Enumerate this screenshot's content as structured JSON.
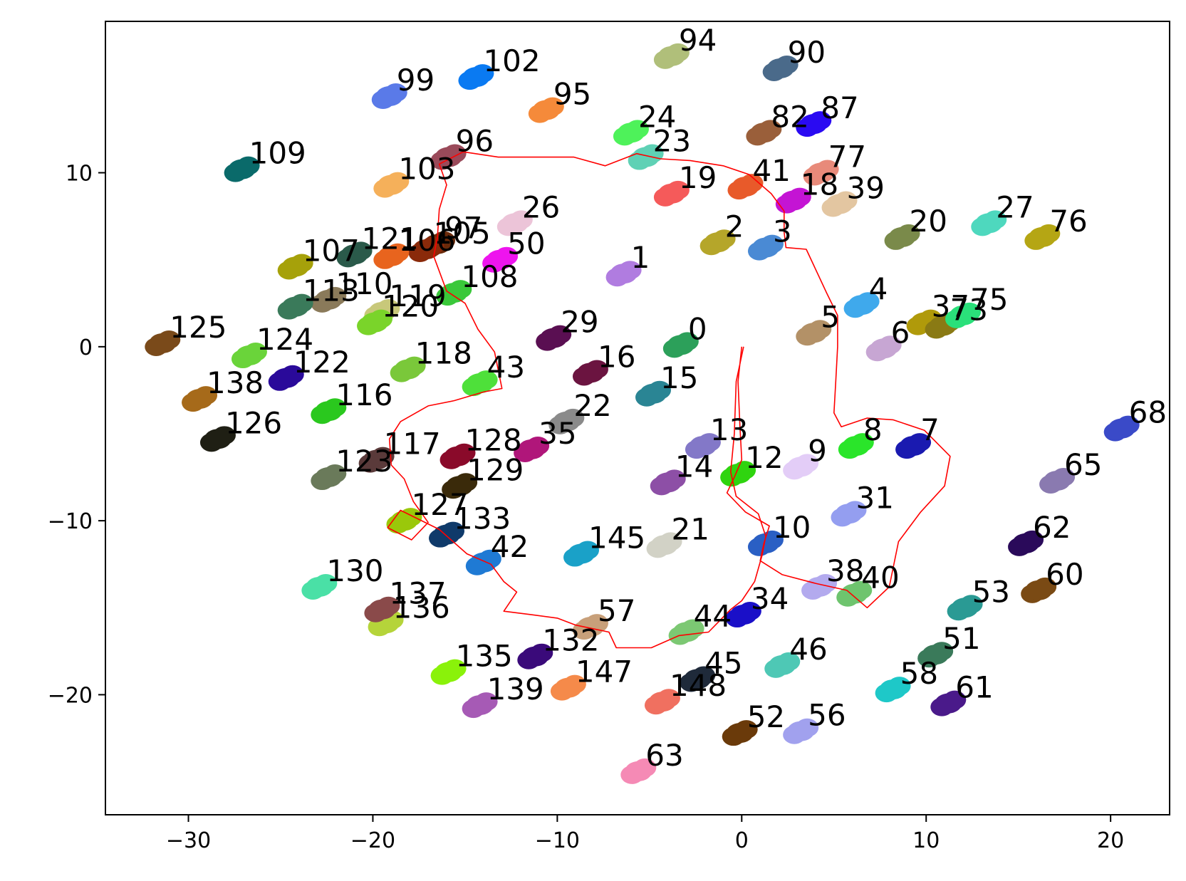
{
  "chart_data": {
    "type": "scatter",
    "title": "",
    "xlabel": "",
    "ylabel": "",
    "xlim": [
      -34.5,
      23.2
    ],
    "ylim": [
      -26.9,
      18.7
    ],
    "xticks": [
      -30,
      -20,
      -10,
      0,
      10,
      20
    ],
    "yticks": [
      -20,
      -10,
      0,
      10
    ],
    "xtick_labels": [
      "−30",
      "−20",
      "−10",
      "0",
      "10",
      "20"
    ],
    "ytick_labels": [
      "−20",
      "−10",
      "0",
      "10"
    ],
    "grid": false,
    "legend": "none",
    "clusters": [
      {
        "label": "0",
        "x": -3.3,
        "y": 0.1,
        "color": "#2ca05a"
      },
      {
        "label": "1",
        "x": -6.4,
        "y": 4.2,
        "color": "#b07ce0"
      },
      {
        "label": "2",
        "x": -1.3,
        "y": 6.0,
        "color": "#b5a62a"
      },
      {
        "label": "3",
        "x": 1.3,
        "y": 5.7,
        "color": "#4a8ad4"
      },
      {
        "label": "4",
        "x": 6.5,
        "y": 2.4,
        "color": "#3fa9ec"
      },
      {
        "label": "5",
        "x": 3.9,
        "y": 0.8,
        "color": "#b39167"
      },
      {
        "label": "6",
        "x": 7.7,
        "y": -0.1,
        "color": "#c7a6d3"
      },
      {
        "label": "7",
        "x": 9.3,
        "y": -5.7,
        "color": "#1a1ab0"
      },
      {
        "label": "8",
        "x": 6.2,
        "y": -5.7,
        "color": "#2ae52a"
      },
      {
        "label": "9",
        "x": 3.2,
        "y": -6.9,
        "color": "#e3cdf7"
      },
      {
        "label": "10",
        "x": 1.3,
        "y": -11.3,
        "color": "#2a5fc4"
      },
      {
        "label": "12",
        "x": -0.2,
        "y": -7.3,
        "color": "#2fd40f"
      },
      {
        "label": "13",
        "x": -2.1,
        "y": -5.7,
        "color": "#8378c8"
      },
      {
        "label": "14",
        "x": -4.0,
        "y": -7.8,
        "color": "#8d4fa6"
      },
      {
        "label": "15",
        "x": -4.8,
        "y": -2.7,
        "color": "#2a8594"
      },
      {
        "label": "16",
        "x": -8.2,
        "y": -1.5,
        "color": "#6b1440"
      },
      {
        "label": "18",
        "x": 2.8,
        "y": 8.4,
        "color": "#c414d4"
      },
      {
        "label": "19",
        "x": -3.8,
        "y": 8.8,
        "color": "#f55a5a"
      },
      {
        "label": "20",
        "x": 8.7,
        "y": 6.3,
        "color": "#7a8a4a"
      },
      {
        "label": "21",
        "x": -4.2,
        "y": -11.4,
        "color": "#d2d2c6"
      },
      {
        "label": "22",
        "x": -9.5,
        "y": -4.3,
        "color": "#8a8a8a"
      },
      {
        "label": "23",
        "x": -5.2,
        "y": 10.9,
        "color": "#5fd1b5"
      },
      {
        "label": "24",
        "x": -6.0,
        "y": 12.3,
        "color": "#4ef25a"
      },
      {
        "label": "26",
        "x": -12.3,
        "y": 7.1,
        "color": "#ecc4d8"
      },
      {
        "label": "27",
        "x": 13.4,
        "y": 7.1,
        "color": "#4ed8be"
      },
      {
        "label": "29",
        "x": -10.2,
        "y": 0.5,
        "color": "#5a0f52"
      },
      {
        "label": "31",
        "x": 5.8,
        "y": -9.6,
        "color": "#949ef0"
      },
      {
        "label": "34",
        "x": 0.1,
        "y": -15.4,
        "color": "#1a0fc8"
      },
      {
        "label": "35",
        "x": -11.4,
        "y": -5.9,
        "color": "#b0167a"
      },
      {
        "label": "37",
        "x": 9.9,
        "y": 1.4,
        "color": "#b09a0a"
      },
      {
        "label": "38",
        "x": 4.2,
        "y": -13.8,
        "color": "#b3aaee"
      },
      {
        "label": "39",
        "x": 5.3,
        "y": 8.2,
        "color": "#e3c6a1"
      },
      {
        "label": "40",
        "x": 6.1,
        "y": -14.2,
        "color": "#6ec46e"
      },
      {
        "label": "41",
        "x": 0.2,
        "y": 9.2,
        "color": "#e85a2a"
      },
      {
        "label": "42",
        "x": -14.0,
        "y": -12.4,
        "color": "#1f7ad4"
      },
      {
        "label": "43",
        "x": -14.2,
        "y": -2.1,
        "color": "#4ee03a"
      },
      {
        "label": "44",
        "x": -3.0,
        "y": -16.4,
        "color": "#7cc873"
      },
      {
        "label": "45",
        "x": -2.4,
        "y": -19.1,
        "color": "#1f2a3a"
      },
      {
        "label": "46",
        "x": 2.2,
        "y": -18.3,
        "color": "#4ec8b5"
      },
      {
        "label": "50",
        "x": -13.1,
        "y": 5.0,
        "color": "#ee14ee"
      },
      {
        "label": "51",
        "x": 10.5,
        "y": -17.7,
        "color": "#3a7a5a"
      },
      {
        "label": "52",
        "x": -0.1,
        "y": -22.2,
        "color": "#6a3a0a"
      },
      {
        "label": "53",
        "x": 12.1,
        "y": -15.0,
        "color": "#2a9a94"
      },
      {
        "label": "56",
        "x": 3.2,
        "y": -22.1,
        "color": "#a1a1ee"
      },
      {
        "label": "57",
        "x": -8.2,
        "y": -16.1,
        "color": "#c8a07a"
      },
      {
        "label": "58",
        "x": 8.2,
        "y": -19.7,
        "color": "#1ec8c8"
      },
      {
        "label": "60",
        "x": 16.1,
        "y": -14.0,
        "color": "#7a4a14"
      },
      {
        "label": "61",
        "x": 11.2,
        "y": -20.5,
        "color": "#4a1a8a"
      },
      {
        "label": "62",
        "x": 15.4,
        "y": -11.3,
        "color": "#2a0a5a"
      },
      {
        "label": "63",
        "x": -5.6,
        "y": -24.4,
        "color": "#f58ab5"
      },
      {
        "label": "65",
        "x": 17.1,
        "y": -7.7,
        "color": "#8a7ab0"
      },
      {
        "label": "68",
        "x": 20.6,
        "y": -4.7,
        "color": "#3a4ac8"
      },
      {
        "label": "73",
        "x": 10.9,
        "y": 1.2,
        "color": "#8a7a14"
      },
      {
        "label": "75",
        "x": 12.0,
        "y": 1.8,
        "color": "#2ae07a"
      },
      {
        "label": "76",
        "x": 16.3,
        "y": 6.3,
        "color": "#b5a614"
      },
      {
        "label": "77",
        "x": 4.3,
        "y": 10.0,
        "color": "#e88a7a"
      },
      {
        "label": "82",
        "x": 1.2,
        "y": 12.3,
        "color": "#9a5f3a"
      },
      {
        "label": "87",
        "x": 3.9,
        "y": 12.8,
        "color": "#2a0af2"
      },
      {
        "label": "90",
        "x": 2.1,
        "y": 16.0,
        "color": "#4a6a8a"
      },
      {
        "label": "94",
        "x": -3.8,
        "y": 16.7,
        "color": "#b0bf7a"
      },
      {
        "label": "95",
        "x": -10.6,
        "y": 13.6,
        "color": "#f58a3a"
      },
      {
        "label": "96",
        "x": -15.9,
        "y": 10.9,
        "color": "#9a4a5a"
      },
      {
        "label": "97",
        "x": -16.5,
        "y": 5.9,
        "color": "#6a2a0a"
      },
      {
        "label": "99",
        "x": -19.1,
        "y": 14.4,
        "color": "#5a7ae8"
      },
      {
        "label": "102",
        "x": -14.4,
        "y": 15.5,
        "color": "#0a7af2"
      },
      {
        "label": "103",
        "x": -19.0,
        "y": 9.3,
        "color": "#f5b05a"
      },
      {
        "label": "105",
        "x": -17.1,
        "y": 5.6,
        "color": "#8a2a0a"
      },
      {
        "label": "106",
        "x": -19.0,
        "y": 5.2,
        "color": "#e8641e"
      },
      {
        "label": "107",
        "x": -24.2,
        "y": 4.6,
        "color": "#a6a10a"
      },
      {
        "label": "108",
        "x": -15.6,
        "y": 3.1,
        "color": "#3ac83a"
      },
      {
        "label": "109",
        "x": -27.1,
        "y": 10.2,
        "color": "#0a6a6a"
      },
      {
        "label": "110",
        "x": -22.4,
        "y": 2.7,
        "color": "#8a7a5a"
      },
      {
        "label": "113",
        "x": -24.2,
        "y": 2.3,
        "color": "#3a7a5a"
      },
      {
        "label": "116",
        "x": -22.4,
        "y": -3.7,
        "color": "#2ac81e"
      },
      {
        "label": "117",
        "x": -19.8,
        "y": -6.5,
        "color": "#5a3a3a"
      },
      {
        "label": "118",
        "x": -18.1,
        "y": -1.3,
        "color": "#7ac83a"
      },
      {
        "label": "119",
        "x": -19.5,
        "y": 2.0,
        "color": "#c8c87a"
      },
      {
        "label": "120",
        "x": -19.9,
        "y": 1.4,
        "color": "#7ad42a"
      },
      {
        "label": "121",
        "x": -21.0,
        "y": 5.3,
        "color": "#2a5a4a"
      },
      {
        "label": "122",
        "x": -24.7,
        "y": -1.8,
        "color": "#2a0a9a"
      },
      {
        "label": "123",
        "x": -22.4,
        "y": -7.5,
        "color": "#6a7a5a"
      },
      {
        "label": "124",
        "x": -26.7,
        "y": -0.5,
        "color": "#6ad43a"
      },
      {
        "label": "125",
        "x": -31.4,
        "y": 0.2,
        "color": "#7a4a1a"
      },
      {
        "label": "126",
        "x": -28.4,
        "y": -5.3,
        "color": "#1f1f14"
      },
      {
        "label": "127",
        "x": -18.3,
        "y": -10.0,
        "color": "#9ac80a"
      },
      {
        "label": "128",
        "x": -15.4,
        "y": -6.3,
        "color": "#8a0a2a"
      },
      {
        "label": "129",
        "x": -15.3,
        "y": -8.0,
        "color": "#3a2a0a"
      },
      {
        "label": "130",
        "x": -22.9,
        "y": -13.8,
        "color": "#4ae0a6"
      },
      {
        "label": "132",
        "x": -11.2,
        "y": -17.8,
        "color": "#3a0a7a"
      },
      {
        "label": "133",
        "x": -16.0,
        "y": -10.8,
        "color": "#0f3a6a"
      },
      {
        "label": "135",
        "x": -15.9,
        "y": -18.7,
        "color": "#8af20a"
      },
      {
        "label": "136",
        "x": -19.3,
        "y": -15.9,
        "color": "#b5d43a"
      },
      {
        "label": "137",
        "x": -19.5,
        "y": -15.1,
        "color": "#8a4a4a"
      },
      {
        "label": "138",
        "x": -29.4,
        "y": -3.0,
        "color": "#a66a1a"
      },
      {
        "label": "139",
        "x": -14.2,
        "y": -20.6,
        "color": "#a65ab5"
      },
      {
        "label": "145",
        "x": -8.7,
        "y": -11.9,
        "color": "#1aa1c8"
      },
      {
        "label": "147",
        "x": -9.4,
        "y": -19.6,
        "color": "#f58a4a"
      },
      {
        "label": "148",
        "x": -4.3,
        "y": -20.4,
        "color": "#f07060"
      }
    ],
    "trajectory": {
      "color": "#ff0000",
      "points": [
        [
          0.0,
          0.0
        ],
        [
          -0.2,
          -2.0
        ],
        [
          -0.1,
          -4.5
        ],
        [
          0.0,
          -6.5
        ],
        [
          -0.4,
          -7.5
        ],
        [
          -0.8,
          -8.4
        ],
        [
          0.2,
          -9.5
        ],
        [
          1.5,
          -10.3
        ],
        [
          1.2,
          -11.3
        ],
        [
          1.0,
          -12.3
        ],
        [
          2.2,
          -13.1
        ],
        [
          4.0,
          -13.6
        ],
        [
          5.7,
          -14.0
        ],
        [
          6.8,
          -15.0
        ],
        [
          8.0,
          -13.8
        ],
        [
          8.5,
          -11.2
        ],
        [
          9.7,
          -9.5
        ],
        [
          11.0,
          -8.0
        ],
        [
          11.3,
          -6.3
        ],
        [
          9.9,
          -4.8
        ],
        [
          8.2,
          -4.2
        ],
        [
          6.8,
          -4.1
        ],
        [
          5.4,
          -4.6
        ],
        [
          5.0,
          -3.8
        ],
        [
          5.1,
          -2.0
        ],
        [
          5.2,
          0.0
        ],
        [
          5.2,
          1.8
        ],
        [
          4.6,
          3.1
        ],
        [
          3.5,
          5.6
        ],
        [
          2.4,
          5.7
        ],
        [
          2.3,
          6.6
        ],
        [
          2.3,
          7.8
        ],
        [
          1.6,
          8.8
        ],
        [
          0.4,
          9.9
        ],
        [
          -1.0,
          10.4
        ],
        [
          -2.8,
          10.7
        ],
        [
          -4.4,
          10.8
        ],
        [
          -5.7,
          11.1
        ],
        [
          -7.4,
          10.4
        ],
        [
          -9.1,
          10.9
        ],
        [
          -11.0,
          10.9
        ],
        [
          -13.2,
          10.9
        ],
        [
          -15.1,
          11.2
        ],
        [
          -16.4,
          10.5
        ],
        [
          -16.0,
          9.3
        ],
        [
          -16.4,
          7.9
        ],
        [
          -16.5,
          6.3
        ],
        [
          -16.7,
          5.2
        ],
        [
          -16.0,
          3.2
        ],
        [
          -15.0,
          2.5
        ],
        [
          -14.3,
          1.0
        ],
        [
          -13.4,
          -0.3
        ],
        [
          -13.0,
          -2.4
        ],
        [
          -14.0,
          -2.6
        ],
        [
          -15.6,
          -3.1
        ],
        [
          -17.0,
          -3.4
        ],
        [
          -18.5,
          -4.3
        ],
        [
          -19.1,
          -5.3
        ],
        [
          -19.0,
          -6.8
        ],
        [
          -18.3,
          -7.6
        ],
        [
          -17.8,
          -8.9
        ],
        [
          -17.0,
          -10.1
        ],
        [
          -17.9,
          -11.1
        ],
        [
          -19.2,
          -10.4
        ],
        [
          -18.5,
          -9.4
        ],
        [
          -16.4,
          -10.5
        ],
        [
          -14.9,
          -11.9
        ],
        [
          -13.6,
          -12.5
        ],
        [
          -12.9,
          -13.5
        ],
        [
          -12.2,
          -14.1
        ],
        [
          -12.9,
          -15.2
        ],
        [
          -11.4,
          -15.4
        ],
        [
          -10.0,
          -15.6
        ],
        [
          -9.0,
          -16.0
        ],
        [
          -7.2,
          -16.4
        ],
        [
          -6.8,
          -17.3
        ],
        [
          -4.9,
          -17.3
        ],
        [
          -3.4,
          -16.6
        ],
        [
          -1.8,
          -16.4
        ],
        [
          -0.6,
          -15.1
        ],
        [
          0.0,
          -14.6
        ],
        [
          0.7,
          -13.5
        ],
        [
          1.1,
          -12.0
        ],
        [
          1.3,
          -10.9
        ],
        [
          0.9,
          -9.6
        ],
        [
          -0.3,
          -8.6
        ],
        [
          -0.6,
          -7.2
        ],
        [
          -0.4,
          -5.0
        ],
        [
          -0.3,
          -2.0
        ],
        [
          0.1,
          0.0
        ]
      ]
    }
  }
}
